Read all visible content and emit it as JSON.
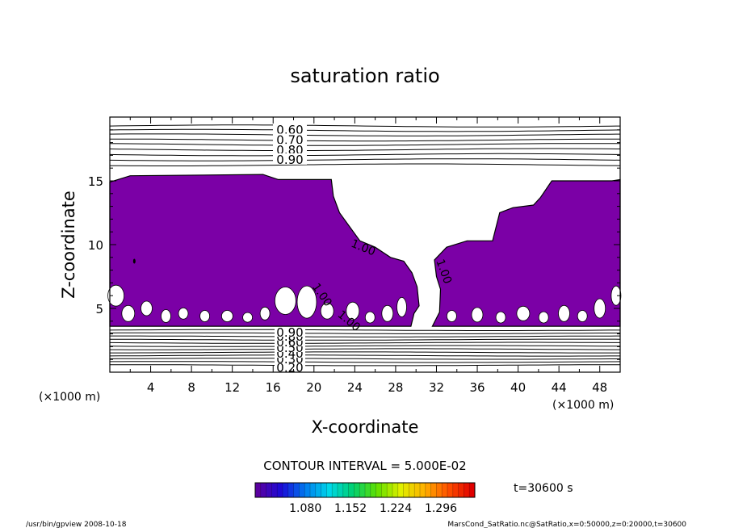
{
  "chart_data": {
    "type": "contour",
    "title": "saturation ratio",
    "xlabel": "X-coordinate",
    "ylabel": "Z-coordinate",
    "x_unit": "(×1000 m)",
    "z_unit": "(×1000 m)",
    "xlim": [
      0,
      50
    ],
    "ylim": [
      0,
      20
    ],
    "x_ticks": [
      4,
      8,
      12,
      16,
      20,
      24,
      28,
      32,
      36,
      40,
      44,
      48
    ],
    "y_ticks": [
      5,
      10,
      15
    ],
    "upper_contours": [
      {
        "level": 0.6,
        "label": "0.60"
      },
      {
        "level": 0.7,
        "label": "0.70"
      },
      {
        "level": 0.8,
        "label": "0.80"
      },
      {
        "level": 0.9,
        "label": "0.90"
      }
    ],
    "lower_contours": [
      {
        "level": 0.2,
        "label": "0.20"
      },
      {
        "level": 0.3,
        "label": "0.30"
      },
      {
        "level": 0.4,
        "label": "0.40"
      },
      {
        "level": 0.5,
        "label": "0.50"
      },
      {
        "level": 0.6,
        "label": "0.60"
      },
      {
        "level": 0.8,
        "label": "0.80"
      },
      {
        "level": 0.9,
        "label": "0.90"
      }
    ],
    "inline_labels": [
      "1.00",
      "1.00",
      "1.00",
      "1.00"
    ],
    "shaded_region": {
      "color": "#7b00a6",
      "left_top_z": 15.5,
      "right_top_z": 15.0,
      "base_z": 3.6,
      "clear_column_x": [
        21.5,
        37.5
      ]
    },
    "contour_interval_text": "CONTOUR INTERVAL = 5.000E-02",
    "time_text": "t=30600 s",
    "colorbar": {
      "min": 1.0,
      "max": 1.35,
      "tick_labels": [
        "1.080",
        "1.152",
        "1.224",
        "1.296"
      ],
      "colors": [
        "#5a00a0",
        "#1a0ad8",
        "#007cf0",
        "#00d8e8",
        "#00d070",
        "#60e000",
        "#e0f000",
        "#ffb000",
        "#ff5000",
        "#e00000"
      ]
    }
  },
  "footer": {
    "left": "/usr/bin/gpview   2008-10-18",
    "right": "MarsCond_SatRatio.nc@SatRatio,x=0:50000,z=0:20000,t=30600"
  }
}
